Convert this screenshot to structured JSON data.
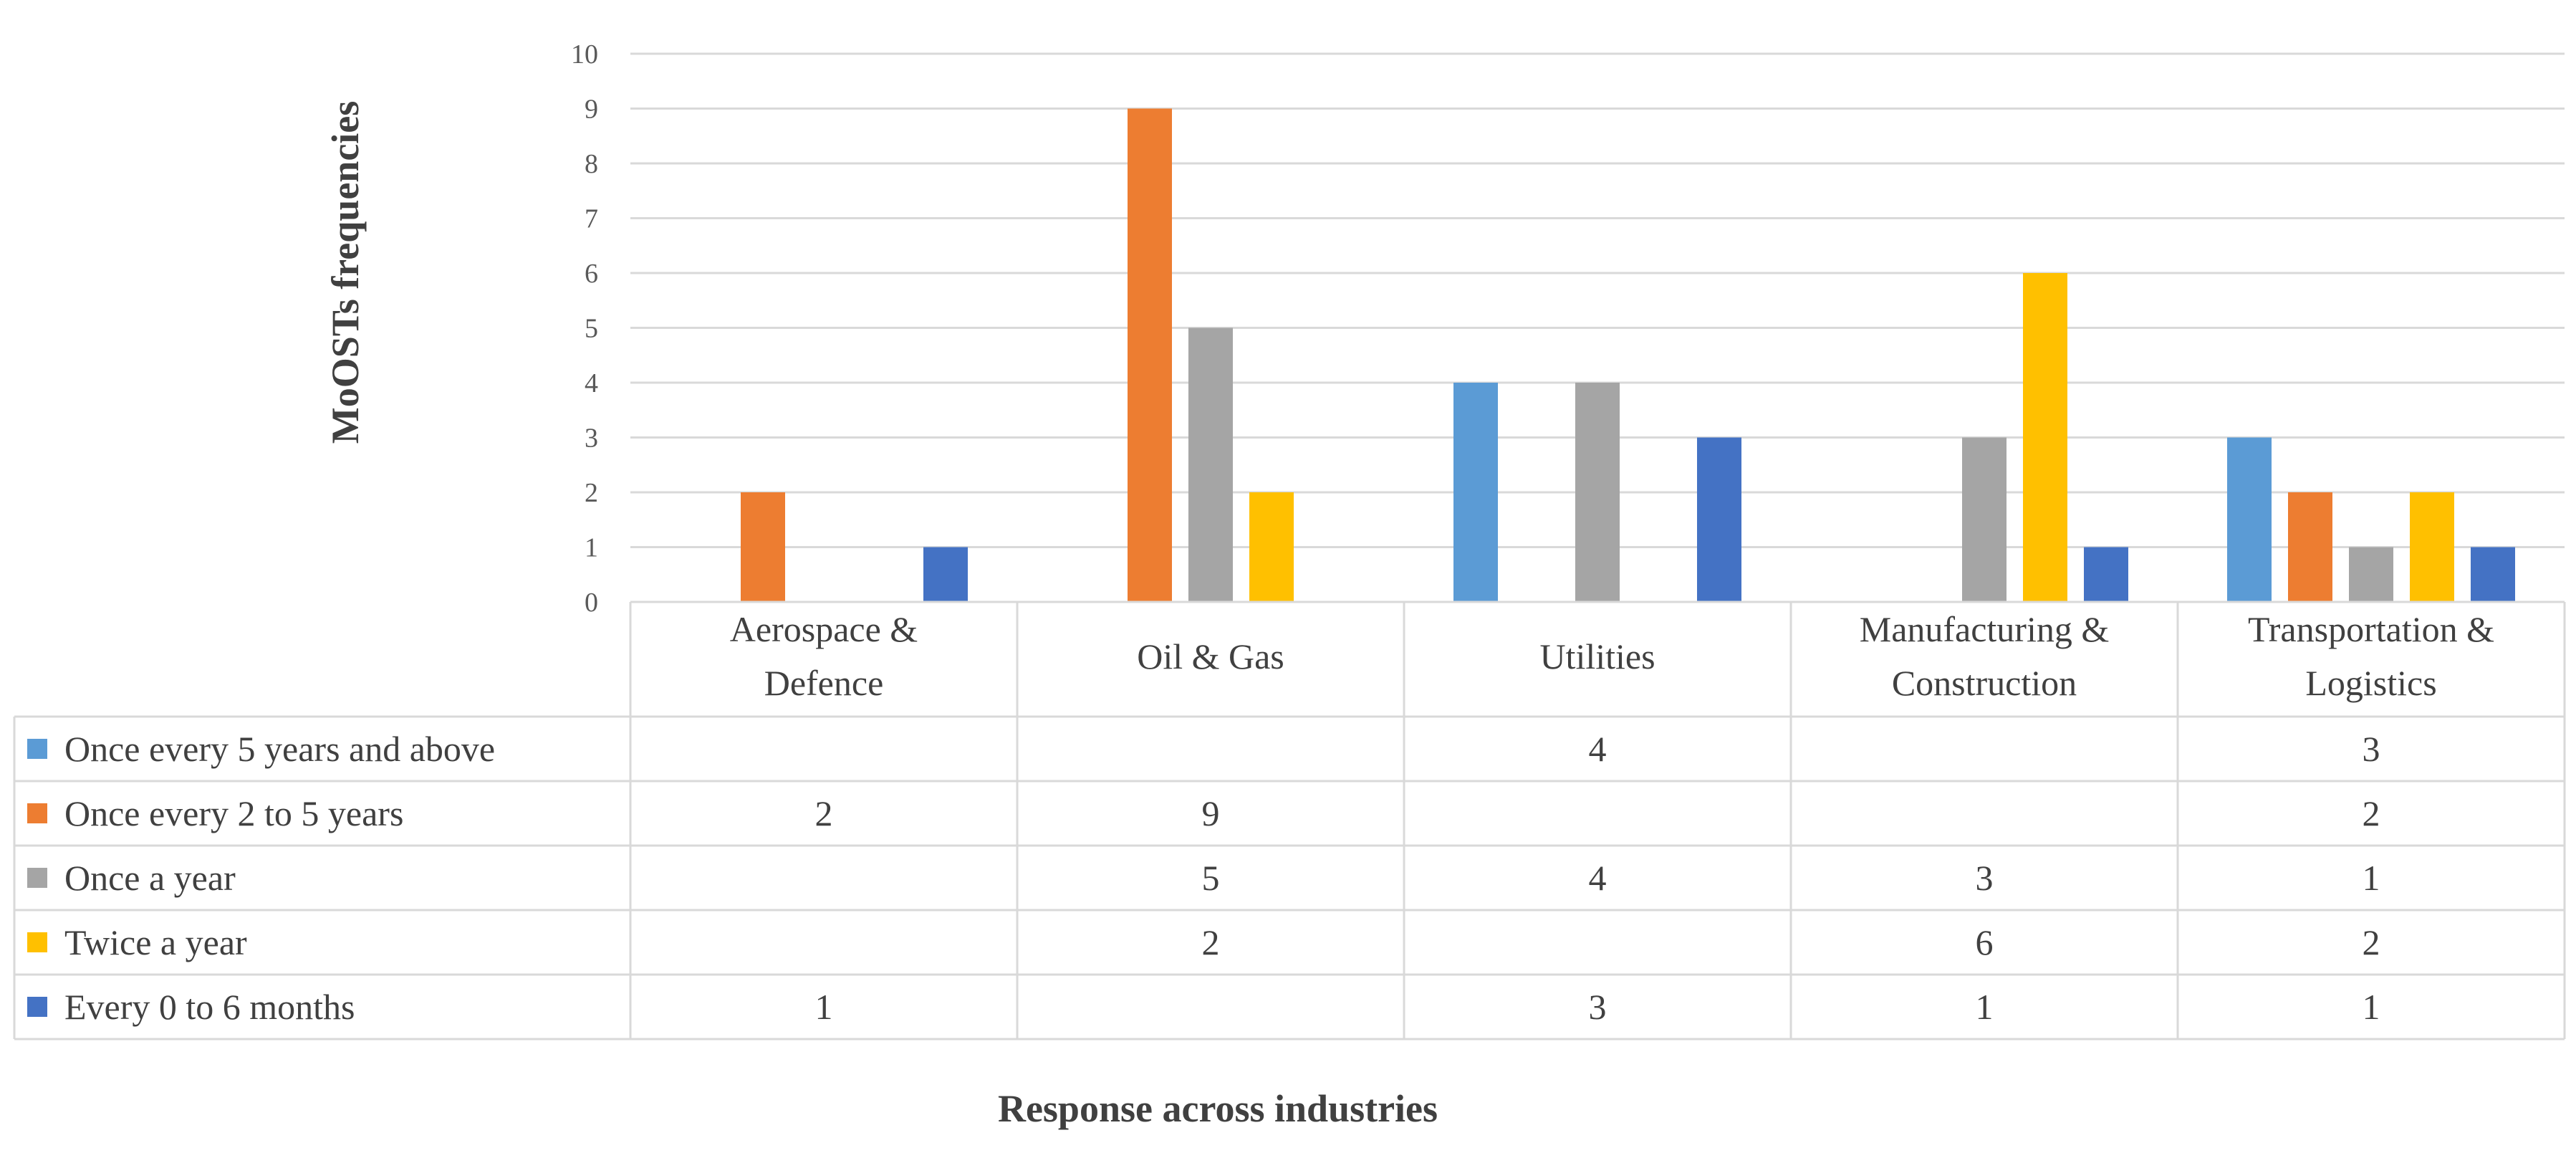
{
  "chart_data": {
    "type": "bar",
    "title": "",
    "xlabel": "Response across industries",
    "ylabel": "MoOSTs frequencies",
    "ylim": [
      0,
      10
    ],
    "yticks": [
      0,
      1,
      2,
      3,
      4,
      5,
      6,
      7,
      8,
      9,
      10
    ],
    "grid": true,
    "legend": "data-table",
    "categories": [
      [
        "Aerospace &",
        "Defence"
      ],
      [
        "Oil & Gas"
      ],
      [
        "Utilities"
      ],
      [
        "Manufacturing &",
        "Construction"
      ],
      [
        "Transportation &",
        "Logistics"
      ]
    ],
    "series": [
      {
        "name": "Once every 5 years and above",
        "color": "#5B9BD5",
        "values": [
          null,
          null,
          4,
          null,
          3
        ]
      },
      {
        "name": "Once every 2 to 5 years",
        "color": "#ED7D31",
        "values": [
          2,
          9,
          null,
          null,
          2
        ]
      },
      {
        "name": "Once a year",
        "color": "#A5A5A5",
        "values": [
          null,
          5,
          4,
          3,
          1
        ]
      },
      {
        "name": "Twice a year",
        "color": "#FFC000",
        "values": [
          null,
          2,
          null,
          6,
          2
        ]
      },
      {
        "name": "Every 0 to 6 months",
        "color": "#4472C4",
        "values": [
          1,
          null,
          3,
          1,
          1
        ]
      }
    ]
  }
}
